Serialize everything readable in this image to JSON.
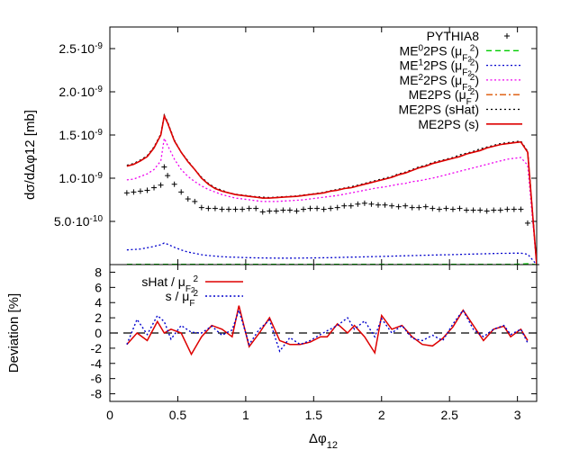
{
  "chart_data": [
    {
      "type": "line",
      "xlim": [
        0,
        3.1416
      ],
      "ylim": [
        0,
        2.75e-09
      ],
      "ylabel": "dσ/dΔφ12 [mb]",
      "xlabel": "",
      "grid": false,
      "legend_position": "top-right",
      "y_ticks": [
        {
          "value": 5e-10,
          "label_base": "5.0·10",
          "label_exp": "-10"
        },
        {
          "value": 1e-09,
          "label_base": "1.0·10",
          "label_exp": "-9"
        },
        {
          "value": 1.5e-09,
          "label_base": "1.5·10",
          "label_exp": "-9"
        },
        {
          "value": 2e-09,
          "label_base": "2.0·10",
          "label_exp": "-9"
        },
        {
          "value": 2.5e-09,
          "label_base": "2.5·10",
          "label_exp": "-9"
        }
      ],
      "x_ticks": [
        0,
        0.5,
        1,
        1.5,
        2,
        2.5,
        3
      ],
      "x": [
        0.125,
        0.175,
        0.225,
        0.275,
        0.325,
        0.375,
        0.4,
        0.425,
        0.475,
        0.525,
        0.575,
        0.625,
        0.675,
        0.725,
        0.775,
        0.825,
        0.875,
        0.925,
        0.975,
        1.025,
        1.075,
        1.125,
        1.175,
        1.225,
        1.275,
        1.325,
        1.375,
        1.425,
        1.475,
        1.525,
        1.575,
        1.625,
        1.675,
        1.725,
        1.775,
        1.825,
        1.875,
        1.925,
        1.975,
        2.025,
        2.075,
        2.125,
        2.175,
        2.225,
        2.275,
        2.325,
        2.375,
        2.425,
        2.475,
        2.525,
        2.575,
        2.625,
        2.675,
        2.725,
        2.775,
        2.825,
        2.875,
        2.925,
        2.975,
        3.025,
        3.075,
        3.1416
      ],
      "series": [
        {
          "name": "PYTHIA8",
          "style": "points",
          "marker": "+",
          "color": "#000000",
          "values": [
            8.3e-10,
            8.4e-10,
            8.5e-10,
            8.6e-10,
            8.9e-10,
            9.2e-10,
            1.13e-09,
            1.03e-09,
            9.3e-10,
            8.4e-10,
            7.6e-10,
            7.3e-10,
            6.6e-10,
            6.5e-10,
            6.5e-10,
            6.4e-10,
            6.4e-10,
            6.4e-10,
            6.4e-10,
            6.5e-10,
            6.5e-10,
            6.1e-10,
            6.2e-10,
            6.2e-10,
            6.3e-10,
            6.3e-10,
            6.2e-10,
            6.4e-10,
            6.5e-10,
            6.5e-10,
            6.4e-10,
            6.5e-10,
            6.6e-10,
            6.8e-10,
            6.8e-10,
            7e-10,
            7.1e-10,
            7e-10,
            6.9e-10,
            6.9e-10,
            6.8e-10,
            6.7e-10,
            6.8e-10,
            6.6e-10,
            6.6e-10,
            6.7e-10,
            6.5e-10,
            6.4e-10,
            6.5e-10,
            6.4e-10,
            6.5e-10,
            6.3e-10,
            6.3e-10,
            6.3e-10,
            6.2e-10,
            6.3e-10,
            6.3e-10,
            6.4e-10,
            6.4e-10,
            6.4e-10,
            4.8e-10,
            0.0
          ]
        },
        {
          "name_base": "ME",
          "name_sup": "0",
          "name_mid": "2PS (μ",
          "name_sub": "F2",
          "name_end": ")",
          "name_sub_sup": "2",
          "style": "dashed",
          "color": "#00cc00",
          "values": [
            3e-12,
            3e-12,
            3e-12,
            3e-12,
            3e-12,
            3e-12,
            3e-12,
            3e-12,
            3e-12,
            3e-12,
            3e-12,
            3e-12,
            3e-12,
            3e-12,
            3e-12,
            3e-12,
            3e-12,
            3e-12,
            3e-12,
            3e-12,
            3e-12,
            3e-12,
            3e-12,
            3e-12,
            3e-12,
            3e-12,
            3e-12,
            3e-12,
            3e-12,
            3e-12,
            3e-12,
            3e-12,
            3e-12,
            3e-12,
            3e-12,
            3e-12,
            3e-12,
            3e-12,
            3e-12,
            3e-12,
            3e-12,
            3e-12,
            3e-12,
            3e-12,
            3e-12,
            3e-12,
            3e-12,
            3e-12,
            3e-12,
            3e-12,
            3e-12,
            3e-12,
            3e-12,
            3e-12,
            3e-12,
            3e-12,
            3e-12,
            3e-12,
            4e-12,
            6e-12,
            1e-11,
            0.0
          ]
        },
        {
          "name_base": "ME",
          "name_sup": "1",
          "name_mid": "2PS (μ",
          "name_sub": "F2",
          "name_end": ")",
          "name_sub_sup": "2",
          "style": "dotted",
          "color": "#0000cc",
          "values": [
            1.7e-10,
            1.75e-10,
            1.8e-10,
            1.95e-10,
            2.1e-10,
            2.3e-10,
            2.5e-10,
            2.35e-10,
            2e-10,
            1.7e-10,
            1.45e-10,
            1.3e-10,
            1.15e-10,
            1.05e-10,
            9.8e-11,
            9.2e-11,
            8.8e-11,
            8.5e-11,
            8.2e-11,
            8e-11,
            7.8e-11,
            7.7e-11,
            7.6e-11,
            7.5e-11,
            7.5e-11,
            7.5e-11,
            7.5e-11,
            7.6e-11,
            7.7e-11,
            7.8e-11,
            7.9e-11,
            8e-11,
            8.2e-11,
            8.4e-11,
            8.6e-11,
            8.8e-11,
            9e-11,
            9.2e-11,
            9.4e-11,
            9.6e-11,
            9.8e-11,
            1e-10,
            1.02e-10,
            1.04e-10,
            1.06e-10,
            1.08e-10,
            1.1e-10,
            1.12e-10,
            1.14e-10,
            1.16e-10,
            1.18e-10,
            1.2e-10,
            1.22e-10,
            1.24e-10,
            1.26e-10,
            1.28e-10,
            1.3e-10,
            1.3e-10,
            1.32e-10,
            1.32e-10,
            1.2e-10,
            0.0
          ]
        },
        {
          "name_base": "ME",
          "name_sup": "2",
          "name_mid": "2PS (μ",
          "name_sub": "F2",
          "name_end": ")",
          "name_sub_sup": "2",
          "style": "dotted",
          "color": "#ee00ee",
          "values": [
            9.8e-10,
            9.9e-10,
            1.02e-09,
            1.05e-09,
            1.1e-09,
            1.2e-09,
            1.46e-09,
            1.38e-09,
            1.22e-09,
            1.1e-09,
            1.02e-09,
            9.6e-10,
            9.1e-10,
            8.7e-10,
            8.4e-10,
            8.1e-10,
            7.9e-10,
            7.7e-10,
            7.6e-10,
            7.5e-10,
            7.4e-10,
            7.3e-10,
            7.3e-10,
            7.3e-10,
            7.35e-10,
            7.4e-10,
            7.45e-10,
            7.5e-10,
            7.6e-10,
            7.7e-10,
            7.8e-10,
            7.9e-10,
            8e-10,
            8.15e-10,
            8.3e-10,
            8.45e-10,
            8.6e-10,
            8.75e-10,
            8.9e-10,
            9e-10,
            9.15e-10,
            9.3e-10,
            9.4e-10,
            9.6e-10,
            9.7e-10,
            9.85e-10,
            1e-09,
            1.02e-09,
            1.04e-09,
            1.06e-09,
            1.08e-09,
            1.1e-09,
            1.12e-09,
            1.14e-09,
            1.16e-09,
            1.18e-09,
            1.2e-09,
            1.22e-09,
            1.23e-09,
            1.24e-09,
            1.15e-09,
            0.0
          ]
        },
        {
          "name_base": "ME2PS (μ",
          "name_sub": "F",
          "name_end": ")",
          "name_sub_sup": "2",
          "style": "dashdot",
          "color": "#dd5500",
          "values": [
            1.14e-09,
            1.16e-09,
            1.2e-09,
            1.25e-09,
            1.35e-09,
            1.5e-09,
            1.72e-09,
            1.64e-09,
            1.43e-09,
            1.3e-09,
            1.19e-09,
            1.1e-09,
            1e-09,
            9.3e-10,
            8.8e-10,
            8.5e-10,
            8.3e-10,
            8.1e-10,
            8e-10,
            7.9e-10,
            7.8e-10,
            7.7e-10,
            7.7e-10,
            7.75e-10,
            7.8e-10,
            7.85e-10,
            7.9e-10,
            8e-10,
            8.1e-10,
            8.2e-10,
            8.3e-10,
            8.5e-10,
            8.6e-10,
            8.8e-10,
            8.9e-10,
            9.1e-10,
            9.3e-10,
            9.5e-10,
            9.7e-10,
            9.9e-10,
            1.01e-09,
            1.04e-09,
            1.06e-09,
            1.09e-09,
            1.12e-09,
            1.14e-09,
            1.17e-09,
            1.19e-09,
            1.21e-09,
            1.23e-09,
            1.25e-09,
            1.28e-09,
            1.3e-09,
            1.32e-09,
            1.35e-09,
            1.37e-09,
            1.39e-09,
            1.4e-09,
            1.41e-09,
            1.42e-09,
            1.3e-09,
            0.0
          ]
        },
        {
          "name": "ME2PS (sHat)",
          "style": "dotted-dense",
          "color": "#000000",
          "values": [
            1.15e-09,
            1.17e-09,
            1.21e-09,
            1.26e-09,
            1.36e-09,
            1.51e-09,
            1.73e-09,
            1.65e-09,
            1.44e-09,
            1.3e-09,
            1.2e-09,
            1.1e-09,
            1.01e-09,
            9.4e-10,
            8.9e-10,
            8.6e-10,
            8.3e-10,
            8.15e-10,
            8.05e-10,
            7.95e-10,
            7.85e-10,
            7.8e-10,
            7.75e-10,
            7.8e-10,
            7.85e-10,
            7.9e-10,
            7.95e-10,
            8.05e-10,
            8.15e-10,
            8.25e-10,
            8.35e-10,
            8.55e-10,
            8.7e-10,
            8.85e-10,
            9e-10,
            9.2e-10,
            9.4e-10,
            9.6e-10,
            9.8e-10,
            1e-09,
            1.02e-09,
            1.05e-09,
            1.07e-09,
            1.1e-09,
            1.13e-09,
            1.15e-09,
            1.18e-09,
            1.2e-09,
            1.22e-09,
            1.24e-09,
            1.27e-09,
            1.29e-09,
            1.31e-09,
            1.34e-09,
            1.36e-09,
            1.38e-09,
            1.4e-09,
            1.41e-09,
            1.42e-09,
            1.43e-09,
            1.31e-09,
            0.0
          ]
        },
        {
          "name": "ME2PS (s)",
          "style": "solid",
          "color": "#dd0000",
          "values": [
            1.14e-09,
            1.16e-09,
            1.2e-09,
            1.25e-09,
            1.35e-09,
            1.5e-09,
            1.72e-09,
            1.64e-09,
            1.43e-09,
            1.3e-09,
            1.19e-09,
            1.1e-09,
            1e-09,
            9.3e-10,
            8.8e-10,
            8.5e-10,
            8.3e-10,
            8.1e-10,
            8e-10,
            7.9e-10,
            7.8e-10,
            7.7e-10,
            7.7e-10,
            7.75e-10,
            7.8e-10,
            7.85e-10,
            7.9e-10,
            8e-10,
            8.1e-10,
            8.2e-10,
            8.3e-10,
            8.5e-10,
            8.6e-10,
            8.8e-10,
            8.9e-10,
            9.1e-10,
            9.3e-10,
            9.5e-10,
            9.7e-10,
            9.9e-10,
            1.01e-09,
            1.04e-09,
            1.06e-09,
            1.09e-09,
            1.12e-09,
            1.14e-09,
            1.17e-09,
            1.19e-09,
            1.21e-09,
            1.23e-09,
            1.25e-09,
            1.28e-09,
            1.3e-09,
            1.32e-09,
            1.35e-09,
            1.37e-09,
            1.39e-09,
            1.4e-09,
            1.41e-09,
            1.42e-09,
            1.3e-09,
            0.0
          ]
        }
      ]
    },
    {
      "type": "line",
      "xlim": [
        0,
        3.1416
      ],
      "ylim": [
        -9,
        9
      ],
      "xlabel_base": "Δφ",
      "xlabel_sub": "12",
      "ylabel": "Deviation [%]",
      "x_ticks": [
        0,
        0.5,
        1,
        1.5,
        2,
        2.5,
        3
      ],
      "y_ticks": [
        -8,
        -6,
        -4,
        -2,
        0,
        2,
        4,
        6,
        8
      ],
      "reference_line": 0,
      "legend_position": "top-left",
      "x": [
        0.125,
        0.2,
        0.275,
        0.35,
        0.4,
        0.45,
        0.525,
        0.6,
        0.675,
        0.75,
        0.825,
        0.9,
        0.95,
        1.025,
        1.1,
        1.175,
        1.25,
        1.325,
        1.4,
        1.475,
        1.55,
        1.6,
        1.675,
        1.75,
        1.8,
        1.875,
        1.95,
        2.0,
        2.075,
        2.15,
        2.225,
        2.3,
        2.375,
        2.45,
        2.525,
        2.6,
        2.675,
        2.75,
        2.825,
        2.9,
        2.95,
        3.025,
        3.075
      ],
      "series": [
        {
          "name_base": "sHat / μ",
          "name_sub": "F2",
          "name_sub_sup": "2",
          "style": "solid",
          "color": "#dd0000",
          "values": [
            -1.5,
            0.0,
            -1.0,
            1.5,
            0.0,
            0.5,
            0.0,
            -2.8,
            -0.5,
            1.0,
            0.5,
            -0.5,
            3.6,
            -1.8,
            0.0,
            2.0,
            -1.0,
            -1.5,
            -1.5,
            -1.2,
            -0.5,
            -0.5,
            1.2,
            0.0,
            1.0,
            -0.5,
            -2.6,
            2.3,
            0.5,
            1.0,
            -0.5,
            -1.5,
            -1.7,
            -0.7,
            0.8,
            3.0,
            1.0,
            -1.0,
            0.5,
            0.9,
            -0.5,
            0.5,
            -1.0
          ]
        },
        {
          "name_base": "s / μ",
          "name_sub": "F",
          "name_sub_sup": "2",
          "style": "dotted",
          "color": "#0000cc",
          "values": [
            -1.5,
            1.8,
            -0.2,
            2.3,
            1.5,
            -0.8,
            1.0,
            0.1,
            0.0,
            0.9,
            -0.3,
            0.4,
            3.0,
            -1.5,
            0.5,
            1.7,
            -2.4,
            -0.6,
            -1.5,
            -1.0,
            -0.2,
            0.3,
            1.0,
            2.0,
            0.5,
            1.6,
            -0.5,
            1.9,
            0.0,
            1.0,
            -0.7,
            -1.0,
            -0.3,
            -1.0,
            1.2,
            3.0,
            0.5,
            -0.5,
            0.5,
            1.0,
            -0.2,
            0.5,
            -1.3
          ]
        }
      ]
    }
  ]
}
